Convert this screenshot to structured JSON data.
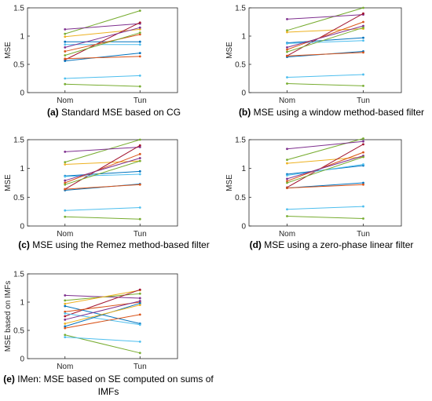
{
  "chart_data": [
    {
      "type": "line",
      "label": "(a)",
      "caption": "Standard MSE based on CG",
      "categories": [
        "Nom",
        "Tun"
      ],
      "ylabel": "MSE",
      "ylim": [
        0,
        1.5
      ],
      "yticks": [
        "0",
        "0.5",
        "1",
        "1.5"
      ],
      "series": [
        {
          "color": "#77ac30",
          "values": [
            1.04,
            1.45
          ]
        },
        {
          "color": "#7e2f8e",
          "values": [
            1.12,
            1.22
          ]
        },
        {
          "color": "#edb120",
          "values": [
            0.99,
            1.12
          ]
        },
        {
          "color": "#0072bd",
          "values": [
            0.9,
            0.9
          ]
        },
        {
          "color": "#a2142f",
          "values": [
            0.58,
            1.24
          ]
        },
        {
          "color": "#4dbeee",
          "values": [
            0.85,
            0.85
          ]
        },
        {
          "color": "#d95319",
          "values": [
            0.73,
            1.03
          ]
        },
        {
          "color": "#7e2f8e",
          "values": [
            0.8,
            1.15
          ]
        },
        {
          "color": "#0072bd",
          "values": [
            0.56,
            0.7
          ]
        },
        {
          "color": "#d95319",
          "values": [
            0.6,
            0.64
          ]
        },
        {
          "color": "#77ac30",
          "values": [
            0.66,
            1.06
          ]
        },
        {
          "color": "#4dbeee",
          "values": [
            0.25,
            0.3
          ]
        },
        {
          "color": "#77ac30",
          "values": [
            0.15,
            0.11
          ]
        }
      ]
    },
    {
      "type": "line",
      "label": "(b)",
      "caption": "MSE using a window method-based filter",
      "categories": [
        "Nom",
        "Tun"
      ],
      "ylabel": "MSE",
      "ylim": [
        0,
        1.5
      ],
      "yticks": [
        "0",
        "0.5",
        "1",
        "1.5"
      ],
      "series": [
        {
          "color": "#77ac30",
          "values": [
            1.1,
            1.5
          ]
        },
        {
          "color": "#7e2f8e",
          "values": [
            1.3,
            1.38
          ]
        },
        {
          "color": "#edb120",
          "values": [
            1.07,
            1.13
          ]
        },
        {
          "color": "#0072bd",
          "values": [
            0.88,
            0.97
          ]
        },
        {
          "color": "#a2142f",
          "values": [
            0.65,
            1.4
          ]
        },
        {
          "color": "#4dbeee",
          "values": [
            0.87,
            0.92
          ]
        },
        {
          "color": "#d95319",
          "values": [
            0.76,
            1.25
          ]
        },
        {
          "color": "#7e2f8e",
          "values": [
            0.8,
            1.18
          ]
        },
        {
          "color": "#0072bd",
          "values": [
            0.63,
            0.73
          ]
        },
        {
          "color": "#d95319",
          "values": [
            0.65,
            0.71
          ]
        },
        {
          "color": "#77ac30",
          "values": [
            0.72,
            1.15
          ]
        },
        {
          "color": "#4dbeee",
          "values": [
            0.27,
            0.32
          ]
        },
        {
          "color": "#77ac30",
          "values": [
            0.16,
            0.12
          ]
        }
      ]
    },
    {
      "type": "line",
      "label": "(c)",
      "caption": "MSE using the Remez method-based filter",
      "categories": [
        "Nom",
        "Tun"
      ],
      "ylabel": "MSE",
      "ylim": [
        0,
        1.5
      ],
      "yticks": [
        "0",
        "0.5",
        "1",
        "1.5"
      ],
      "series": [
        {
          "color": "#77ac30",
          "values": [
            1.11,
            1.5
          ]
        },
        {
          "color": "#7e2f8e",
          "values": [
            1.29,
            1.37
          ]
        },
        {
          "color": "#edb120",
          "values": [
            1.07,
            1.13
          ]
        },
        {
          "color": "#0072bd",
          "values": [
            0.87,
            0.95
          ]
        },
        {
          "color": "#a2142f",
          "values": [
            0.64,
            1.4
          ]
        },
        {
          "color": "#4dbeee",
          "values": [
            0.86,
            0.9
          ]
        },
        {
          "color": "#d95319",
          "values": [
            0.75,
            1.25
          ]
        },
        {
          "color": "#7e2f8e",
          "values": [
            0.79,
            1.18
          ]
        },
        {
          "color": "#0072bd",
          "values": [
            0.62,
            0.73
          ]
        },
        {
          "color": "#d95319",
          "values": [
            0.64,
            0.72
          ]
        },
        {
          "color": "#77ac30",
          "values": [
            0.72,
            1.13
          ]
        },
        {
          "color": "#4dbeee",
          "values": [
            0.27,
            0.32
          ]
        },
        {
          "color": "#77ac30",
          "values": [
            0.16,
            0.12
          ]
        }
      ]
    },
    {
      "type": "line",
      "label": "(d)",
      "caption": "MSE using a zero-phase linear filter",
      "categories": [
        "Nom",
        "Tun"
      ],
      "ylabel": "MSE",
      "ylim": [
        0,
        1.5
      ],
      "yticks": [
        "0",
        "0.5",
        "1",
        "1.5"
      ],
      "series": [
        {
          "color": "#77ac30",
          "values": [
            1.15,
            1.52
          ]
        },
        {
          "color": "#7e2f8e",
          "values": [
            1.34,
            1.47
          ]
        },
        {
          "color": "#edb120",
          "values": [
            1.09,
            1.2
          ]
        },
        {
          "color": "#0072bd",
          "values": [
            0.9,
            1.05
          ]
        },
        {
          "color": "#a2142f",
          "values": [
            0.67,
            1.42
          ]
        },
        {
          "color": "#4dbeee",
          "values": [
            0.88,
            1.07
          ]
        },
        {
          "color": "#d95319",
          "values": [
            0.78,
            1.28
          ]
        },
        {
          "color": "#7e2f8e",
          "values": [
            0.82,
            1.22
          ]
        },
        {
          "color": "#0072bd",
          "values": [
            0.66,
            0.75
          ]
        },
        {
          "color": "#d95319",
          "values": [
            0.66,
            0.72
          ]
        },
        {
          "color": "#77ac30",
          "values": [
            0.75,
            1.2
          ]
        },
        {
          "color": "#4dbeee",
          "values": [
            0.29,
            0.34
          ]
        },
        {
          "color": "#77ac30",
          "values": [
            0.17,
            0.13
          ]
        }
      ]
    },
    {
      "type": "line",
      "label": "(e)",
      "caption_line1": "IMen: MSE based on SE computed on sums of",
      "caption_line2": "IMFs",
      "categories": [
        "Nom",
        "Tun"
      ],
      "ylabel": "MSE based on IMFs",
      "ylim": [
        0,
        1.5
      ],
      "yticks": [
        "0",
        "0.5",
        "1",
        "1.5"
      ],
      "series": [
        {
          "color": "#7e2f8e",
          "values": [
            1.12,
            1.07
          ]
        },
        {
          "color": "#77ac30",
          "values": [
            1.03,
            1.15
          ]
        },
        {
          "color": "#edb120",
          "values": [
            0.97,
            1.21
          ]
        },
        {
          "color": "#a2142f",
          "values": [
            0.75,
            1.22
          ]
        },
        {
          "color": "#0072bd",
          "values": [
            0.93,
            0.62
          ]
        },
        {
          "color": "#d95319",
          "values": [
            0.83,
            1.0
          ]
        },
        {
          "color": "#4dbeee",
          "values": [
            0.8,
            0.6
          ]
        },
        {
          "color": "#7e2f8e",
          "values": [
            0.69,
            1.02
          ]
        },
        {
          "color": "#0072bd",
          "values": [
            0.57,
            0.98
          ]
        },
        {
          "color": "#d95319",
          "values": [
            0.54,
            0.78
          ]
        },
        {
          "color": "#77ac30",
          "values": [
            0.42,
            0.1
          ]
        },
        {
          "color": "#4dbeee",
          "values": [
            0.38,
            0.3
          ]
        },
        {
          "color": "#edb120",
          "values": [
            0.62,
            0.95
          ]
        }
      ]
    }
  ]
}
